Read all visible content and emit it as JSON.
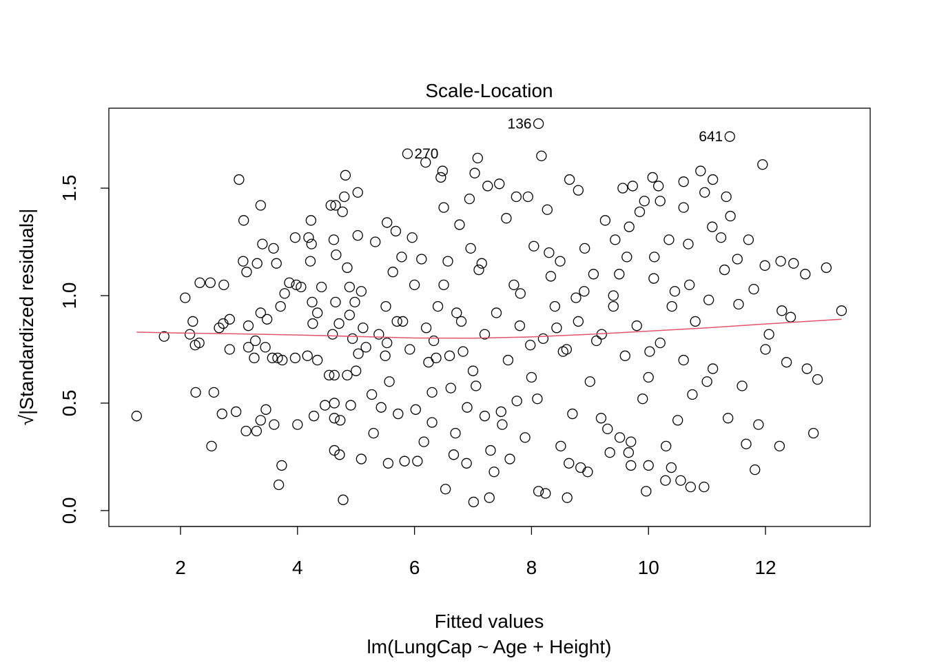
{
  "chart_data": {
    "type": "scatter",
    "title": "Scale-Location",
    "xlabel": "Fitted values",
    "ylabel": "√|Standardized residuals|",
    "subtitle": "lm(LungCap ~ Age + Height)",
    "xlim": [
      0.775,
      13.79
    ],
    "ylim": [
      -0.074,
      1.872
    ],
    "xticks": [
      2,
      4,
      6,
      8,
      10,
      12
    ],
    "yticks": [
      "0.0",
      "0.5",
      "1.0",
      "1.5"
    ],
    "grid": false,
    "point_color": "#000000",
    "smoother_color": "#DF536B",
    "points": [
      [
        1.25,
        0.44
      ],
      [
        1.72,
        0.81
      ],
      [
        2.08,
        0.99
      ],
      [
        2.21,
        0.88
      ],
      [
        2.16,
        0.82
      ],
      [
        2.25,
        0.77
      ],
      [
        2.32,
        0.78
      ],
      [
        2.26,
        0.55
      ],
      [
        2.33,
        1.06
      ],
      [
        2.51,
        1.06
      ],
      [
        2.53,
        0.3
      ],
      [
        2.57,
        0.55
      ],
      [
        2.66,
        0.85
      ],
      [
        2.71,
        0.45
      ],
      [
        2.74,
        1.05
      ],
      [
        2.73,
        0.87
      ],
      [
        2.84,
        0.89
      ],
      [
        2.84,
        0.75
      ],
      [
        2.95,
        0.46
      ],
      [
        3.0,
        1.54
      ],
      [
        3.08,
        1.35
      ],
      [
        3.07,
        1.16
      ],
      [
        3.13,
        1.11
      ],
      [
        3.12,
        0.37
      ],
      [
        3.16,
        0.86
      ],
      [
        3.16,
        0.76
      ],
      [
        3.28,
        0.79
      ],
      [
        3.26,
        0.71
      ],
      [
        3.3,
        0.37
      ],
      [
        3.31,
        1.15
      ],
      [
        3.37,
        1.42
      ],
      [
        3.37,
        0.92
      ],
      [
        3.37,
        0.42
      ],
      [
        3.4,
        1.24
      ],
      [
        3.46,
        0.47
      ],
      [
        3.48,
        0.89
      ],
      [
        3.45,
        0.76
      ],
      [
        3.57,
        0.71
      ],
      [
        3.59,
        1.22
      ],
      [
        3.6,
        0.4
      ],
      [
        3.64,
        1.15
      ],
      [
        3.66,
        0.71
      ],
      [
        3.68,
        0.12
      ],
      [
        3.73,
        0.21
      ],
      [
        3.71,
        0.95
      ],
      [
        3.74,
        0.7
      ],
      [
        3.78,
        1.01
      ],
      [
        3.86,
        1.06
      ],
      [
        3.96,
        1.27
      ],
      [
        3.96,
        0.71
      ],
      [
        3.98,
        1.05
      ],
      [
        4.0,
        0.4
      ],
      [
        4.06,
        1.04
      ],
      [
        4.17,
        0.72
      ],
      [
        4.19,
        1.27
      ],
      [
        4.22,
        1.16
      ],
      [
        4.23,
        1.35
      ],
      [
        4.24,
        1.24
      ],
      [
        4.25,
        0.97
      ],
      [
        4.26,
        0.87
      ],
      [
        4.28,
        0.44
      ],
      [
        4.34,
        0.7
      ],
      [
        4.34,
        0.92
      ],
      [
        4.41,
        1.04
      ],
      [
        4.47,
        0.49
      ],
      [
        4.54,
        0.63
      ],
      [
        4.57,
        1.42
      ],
      [
        4.63,
        0.63
      ],
      [
        4.63,
        0.5
      ],
      [
        4.63,
        0.43
      ],
      [
        4.63,
        0.28
      ],
      [
        4.65,
        1.42
      ],
      [
        4.62,
        1.26
      ],
      [
        4.66,
        1.19
      ],
      [
        4.65,
        0.97
      ],
      [
        4.71,
        0.87
      ],
      [
        4.72,
        0.26
      ],
      [
        4.73,
        0.42
      ],
      [
        4.77,
        1.39
      ],
      [
        4.78,
        0.05
      ],
      [
        4.8,
        1.46
      ],
      [
        4.82,
        1.56
      ],
      [
        4.85,
        1.13
      ],
      [
        4.85,
        0.63
      ],
      [
        4.89,
        1.04
      ],
      [
        4.89,
        0.91
      ],
      [
        4.91,
        0.49
      ],
      [
        4.94,
        0.8
      ],
      [
        4.98,
        0.97
      ],
      [
        5.03,
        1.48
      ],
      [
        5.03,
        1.28
      ],
      [
        5.04,
        0.73
      ],
      [
        5.09,
        1.02
      ],
      [
        5.09,
        0.24
      ],
      [
        5.12,
        0.85
      ],
      [
        5.17,
        0.76
      ],
      [
        5.27,
        0.54
      ],
      [
        5.3,
        0.36
      ],
      [
        5.33,
        1.25
      ],
      [
        5.39,
        0.82
      ],
      [
        5.43,
        0.48
      ],
      [
        5.51,
        0.95
      ],
      [
        5.53,
        1.34
      ],
      [
        5.53,
        0.78
      ],
      [
        5.55,
        0.22
      ],
      [
        5.57,
        0.6
      ],
      [
        5.63,
        1.11
      ],
      [
        5.68,
        1.3
      ],
      [
        5.7,
        0.88
      ],
      [
        5.72,
        0.45
      ],
      [
        5.78,
        1.18
      ],
      [
        5.83,
        0.23
      ],
      [
        5.92,
        0.75
      ],
      [
        5.96,
        1.27
      ],
      [
        6.0,
        1.05
      ],
      [
        6.02,
        0.47
      ],
      [
        6.05,
        0.23
      ],
      [
        6.12,
        1.17
      ],
      [
        6.16,
        0.32
      ],
      [
        6.19,
        1.62
      ],
      [
        6.24,
        0.69
      ],
      [
        6.3,
        0.41
      ],
      [
        6.33,
        0.79
      ],
      [
        6.37,
        0.71
      ],
      [
        6.45,
        1.55
      ],
      [
        6.48,
        1.58
      ],
      [
        6.5,
        1.41
      ],
      [
        6.53,
        0.1
      ],
      [
        6.57,
        1.16
      ],
      [
        6.62,
        0.57
      ],
      [
        6.67,
        0.26
      ],
      [
        6.72,
        0.92
      ],
      [
        6.77,
        1.33
      ],
      [
        6.83,
        0.74
      ],
      [
        6.89,
        0.22
      ],
      [
        6.94,
        1.45
      ],
      [
        6.96,
        1.22
      ],
      [
        7.01,
        0.04
      ],
      [
        7.05,
        0.58
      ],
      [
        7.08,
        1.64
      ],
      [
        7.03,
        1.57
      ],
      [
        7.15,
        1.15
      ],
      [
        7.2,
        0.44
      ],
      [
        7.25,
        1.51
      ],
      [
        7.28,
        0.06
      ],
      [
        7.36,
        0.18
      ],
      [
        7.45,
        1.52
      ],
      [
        7.48,
        0.46
      ],
      [
        7.57,
        1.36
      ],
      [
        7.63,
        0.24
      ],
      [
        7.74,
        1.46
      ],
      [
        7.75,
        0.51
      ],
      [
        7.81,
        1.01
      ],
      [
        7.89,
        0.34
      ],
      [
        7.94,
        1.46
      ],
      [
        7.98,
        0.77
      ],
      [
        8.04,
        1.23
      ],
      [
        8.17,
        1.65
      ],
      [
        8.12,
        0.09
      ],
      [
        8.24,
        0.08
      ],
      [
        8.27,
        1.4
      ],
      [
        8.33,
        1.09
      ],
      [
        8.43,
        0.85
      ],
      [
        8.49,
        1.16
      ],
      [
        8.54,
        0.74
      ],
      [
        8.61,
        0.06
      ],
      [
        8.65,
        1.54
      ],
      [
        8.64,
        0.22
      ],
      [
        8.76,
        0.99
      ],
      [
        8.8,
        1.49
      ],
      [
        8.84,
        0.2
      ],
      [
        8.91,
        1.22
      ],
      [
        8.96,
        0.18
      ],
      [
        9.06,
        1.1
      ],
      [
        9.11,
        0.79
      ],
      [
        9.19,
        0.43
      ],
      [
        9.26,
        1.35
      ],
      [
        9.34,
        0.27
      ],
      [
        9.4,
        1.0
      ],
      [
        9.43,
        1.26
      ],
      [
        9.51,
        0.34
      ],
      [
        9.56,
        1.5
      ],
      [
        9.63,
        1.18
      ],
      [
        9.66,
        0.27
      ],
      [
        9.7,
        0.21
      ],
      [
        9.73,
        1.51
      ],
      [
        9.67,
        1.32
      ],
      [
        9.85,
        1.39
      ],
      [
        9.93,
        1.44
      ],
      [
        9.96,
        0.09
      ],
      [
        10.0,
        0.21
      ],
      [
        10.02,
        0.74
      ],
      [
        10.07,
        1.55
      ],
      [
        10.09,
        1.08
      ],
      [
        10.17,
        1.51
      ],
      [
        10.2,
        1.44
      ],
      [
        10.29,
        0.14
      ],
      [
        10.35,
        1.26
      ],
      [
        10.39,
        0.2
      ],
      [
        10.45,
        1.02
      ],
      [
        10.55,
        0.14
      ],
      [
        10.6,
        1.41
      ],
      [
        10.6,
        1.53
      ],
      [
        10.68,
        1.24
      ],
      [
        10.72,
        0.11
      ],
      [
        10.75,
        0.54
      ],
      [
        10.89,
        1.58
      ],
      [
        10.95,
        0.11
      ],
      [
        10.96,
        1.48
      ],
      [
        11.03,
        0.98
      ],
      [
        11.1,
        1.54
      ],
      [
        11.09,
        1.32
      ],
      [
        11.24,
        1.27
      ],
      [
        11.33,
        1.46
      ],
      [
        11.4,
        1.37
      ],
      [
        11.36,
        0.43
      ],
      [
        11.52,
        1.17
      ],
      [
        11.54,
        0.96
      ],
      [
        11.67,
        0.31
      ],
      [
        11.71,
        1.26
      ],
      [
        11.8,
        1.03
      ],
      [
        11.82,
        0.19
      ],
      [
        11.88,
        0.4
      ],
      [
        11.95,
        1.61
      ],
      [
        11.99,
        1.14
      ],
      [
        12.06,
        0.82
      ],
      [
        12.24,
        0.3
      ],
      [
        12.26,
        1.16
      ],
      [
        12.28,
        0.93
      ],
      [
        12.36,
        0.69
      ],
      [
        12.43,
        0.9
      ],
      [
        12.48,
        1.15
      ],
      [
        12.68,
        1.1
      ],
      [
        12.71,
        0.66
      ],
      [
        12.82,
        0.36
      ],
      [
        12.89,
        0.61
      ],
      [
        13.04,
        1.13
      ],
      [
        13.3,
        0.93
      ],
      [
        6.2,
        0.85
      ],
      [
        6.4,
        0.95
      ],
      [
        6.6,
        0.72
      ],
      [
        6.8,
        0.88
      ],
      [
        7.0,
        0.65
      ],
      [
        7.2,
        0.82
      ],
      [
        7.4,
        0.92
      ],
      [
        7.6,
        0.7
      ],
      [
        7.8,
        0.86
      ],
      [
        8.0,
        0.62
      ],
      [
        8.2,
        0.8
      ],
      [
        8.4,
        0.95
      ],
      [
        8.6,
        0.75
      ],
      [
        8.8,
        0.88
      ],
      [
        9.0,
        0.6
      ],
      [
        9.2,
        0.82
      ],
      [
        9.4,
        0.95
      ],
      [
        9.6,
        0.72
      ],
      [
        9.8,
        0.86
      ],
      [
        10.0,
        0.62
      ],
      [
        10.2,
        0.78
      ],
      [
        10.4,
        0.95
      ],
      [
        10.6,
        0.7
      ],
      [
        10.8,
        0.88
      ],
      [
        11.0,
        0.6
      ],
      [
        6.3,
        0.55
      ],
      [
        6.9,
        0.48
      ],
      [
        7.5,
        0.4
      ],
      [
        8.1,
        0.52
      ],
      [
        8.7,
        0.45
      ],
      [
        9.3,
        0.38
      ],
      [
        9.9,
        0.52
      ],
      [
        10.5,
        0.42
      ],
      [
        11.1,
        0.66
      ],
      [
        6.5,
        1.05
      ],
      [
        7.1,
        1.12
      ],
      [
        7.7,
        1.05
      ],
      [
        8.3,
        1.2
      ],
      [
        8.9,
        1.02
      ],
      [
        9.5,
        1.1
      ],
      [
        10.1,
        1.18
      ],
      [
        10.7,
        1.05
      ],
      [
        11.3,
        1.12
      ],
      [
        5.8,
        0.88
      ],
      [
        5.5,
        0.72
      ],
      [
        5.0,
        0.65
      ],
      [
        4.6,
        0.82
      ],
      [
        12.0,
        0.75
      ],
      [
        11.6,
        0.58
      ],
      [
        8.5,
        0.3
      ],
      [
        7.3,
        0.28
      ],
      [
        9.7,
        0.32
      ],
      [
        6.7,
        0.36
      ],
      [
        10.3,
        0.3
      ]
    ],
    "labeled_points": [
      {
        "x": 5.88,
        "y": 1.66,
        "label": "270",
        "side": "right"
      },
      {
        "x": 8.12,
        "y": 1.8,
        "label": "136",
        "side": "left"
      },
      {
        "x": 11.39,
        "y": 1.74,
        "label": "641",
        "side": "left"
      }
    ],
    "smoother": {
      "x": [
        1.25,
        2,
        3,
        4,
        5,
        6,
        7,
        8,
        9,
        10,
        11,
        12,
        13.3
      ],
      "y": [
        0.83,
        0.826,
        0.822,
        0.817,
        0.81,
        0.803,
        0.802,
        0.808,
        0.82,
        0.835,
        0.85,
        0.868,
        0.89
      ]
    }
  }
}
